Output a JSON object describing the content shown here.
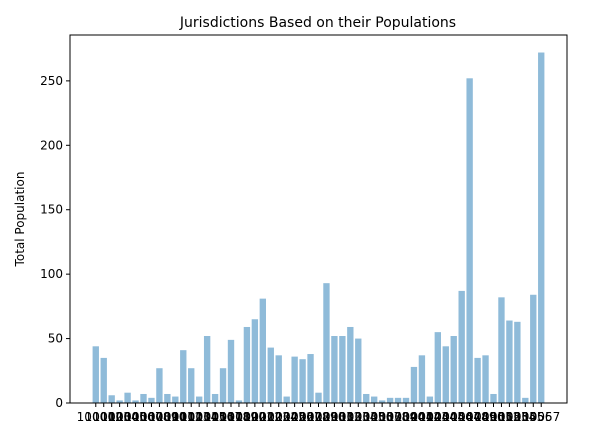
{
  "chart_data": {
    "type": "bar",
    "title": "Jurisdictions Based on their Populations",
    "ylabel": "Total Population",
    "categories": [
      "10001",
      "10002",
      "10003",
      "10004",
      "10005",
      "10006",
      "10007",
      "10008",
      "10009",
      "10010",
      "10011",
      "10012",
      "10013",
      "10014",
      "10015",
      "10016",
      "10017",
      "10018",
      "10019",
      "10020",
      "10021",
      "10022",
      "10023",
      "10024",
      "10025",
      "10026",
      "10027",
      "10028",
      "10029",
      "10030",
      "10031",
      "10032",
      "10033",
      "10034",
      "10035",
      "10036",
      "10037",
      "10038",
      "10039",
      "10040",
      "10041",
      "10042",
      "10043",
      "10044",
      "10045",
      "10046",
      "10047",
      "10048",
      "10049",
      "10050",
      "10051",
      "10052",
      "10053",
      "10054",
      "10055",
      "10056",
      "10057"
    ],
    "values": [
      44,
      35,
      6,
      2,
      8,
      2,
      7,
      4,
      27,
      7,
      5,
      41,
      27,
      5,
      52,
      7,
      27,
      49,
      2,
      59,
      65,
      81,
      43,
      37,
      5,
      36,
      34,
      38,
      8,
      93,
      52,
      52,
      59,
      50,
      7,
      5,
      2,
      4,
      4,
      4,
      28,
      37,
      5,
      55,
      44,
      52,
      87,
      252,
      35,
      37,
      7,
      82,
      64,
      63,
      4,
      84,
      272
    ],
    "color": "#8fbbd9",
    "ylim": [
      0,
      285.6
    ],
    "yticks": [
      0,
      50,
      100,
      150,
      200,
      250
    ]
  }
}
